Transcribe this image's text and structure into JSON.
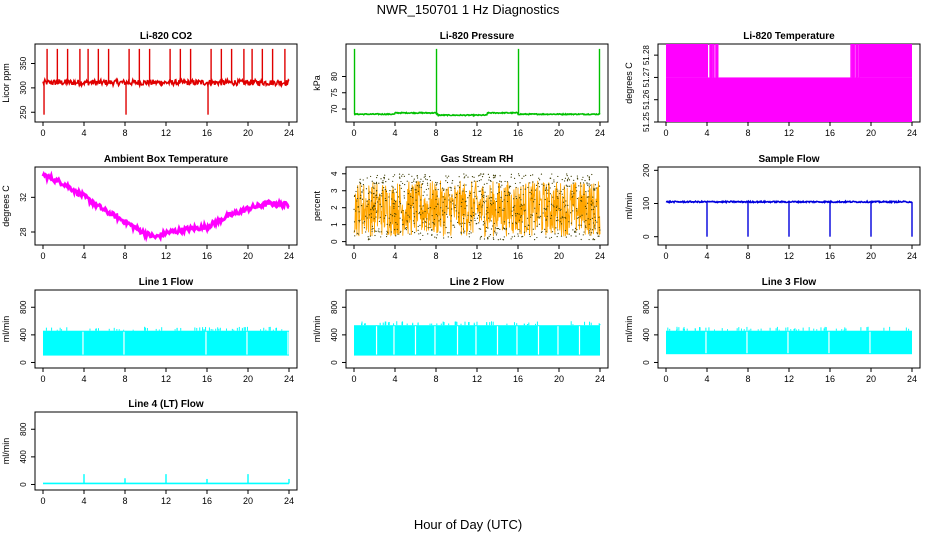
{
  "page": {
    "title": "NWR_150701  1 Hz Diagnostics",
    "xlabel": "Hour of Day (UTC)"
  },
  "colors": {
    "co2": "#e00000",
    "pressure": "#00c000",
    "temperature": "#ff00ff",
    "box_temperature": "#ff00ff",
    "rh": "#ffa500",
    "rh_points": "#3a3a00",
    "sample_flow": "#0000dd",
    "line_flow": "#00ffff",
    "axis": "#000000"
  },
  "chart_data": [
    {
      "type": "line",
      "title": "Li-820 CO2",
      "ylabel": "Licor ppm",
      "xlim": [
        0,
        24
      ],
      "ylim": [
        230,
        390
      ],
      "x_ticks": [
        "0",
        "4",
        "8",
        "12",
        "16",
        "20",
        "24"
      ],
      "y_ticks": [
        "250",
        "300",
        "350"
      ],
      "baseline": 311,
      "noise": 6,
      "spike_up_hours": [
        0.4,
        1.4,
        2.4,
        3.6,
        4.4,
        5.4,
        6.4,
        8.4,
        9.4,
        10.4,
        12.4,
        13.4,
        14.4,
        16.4,
        17.4,
        18.4,
        19.6,
        20.4,
        21.4,
        22.4,
        23.6
      ],
      "spike_up_value": 380,
      "spike_down_hours": [
        0.1,
        8.1,
        16.1
      ],
      "spike_down_value": 245,
      "color_key": "co2"
    },
    {
      "type": "line",
      "title": "Li-820 Pressure",
      "ylabel": "kPa",
      "xlim": [
        0,
        24
      ],
      "ylim": [
        66,
        90
      ],
      "x_ticks": [
        "0",
        "4",
        "8",
        "12",
        "16",
        "20",
        "24"
      ],
      "y_ticks": [
        "70",
        "75",
        "80"
      ],
      "baseline": 68.4,
      "noise": 0.15,
      "spike_up_hours": [
        0.05,
        8.05,
        16.05,
        23.95
      ],
      "spike_up_value": 88.5,
      "steps": [
        {
          "from": 4,
          "to": 8,
          "value": 68.8
        },
        {
          "from": 13,
          "to": 16,
          "value": 68.8
        },
        {
          "from": 8.2,
          "to": 13,
          "value": 68.1
        }
      ],
      "color_key": "pressure"
    },
    {
      "type": "line",
      "title": "Li-820 Temperature",
      "ylabel": "degrees C",
      "xlim": [
        0,
        24
      ],
      "ylim": [
        51.25,
        51.285
      ],
      "x_ticks": [
        "0",
        "4",
        "8",
        "12",
        "16",
        "20",
        "24"
      ],
      "y_ticks": [
        "51.25",
        "51.26",
        "51.27",
        "51.28"
      ],
      "y_tick_values": [
        51.25,
        51.26,
        51.27,
        51.28
      ],
      "quantized_levels": [
        51.25,
        51.27,
        51.285
      ],
      "upper_band_hours": [
        [
          0,
          4.1
        ],
        [
          18.8,
          24
        ]
      ],
      "color_key": "temperature"
    },
    {
      "type": "scatter",
      "title": "Ambient Box Temperature",
      "ylabel": "degrees C",
      "xlim": [
        0,
        24
      ],
      "ylim": [
        26.5,
        35.5
      ],
      "x_ticks": [
        "0",
        "4",
        "8",
        "12",
        "16",
        "20",
        "24"
      ],
      "y_ticks": [
        "28",
        "32"
      ],
      "y_tick_values": [
        28,
        32
      ],
      "x": [
        0,
        2,
        4,
        6,
        8,
        10,
        11,
        12,
        14,
        16,
        18,
        20,
        22,
        24
      ],
      "y": [
        34.6,
        33.6,
        32.1,
        30.5,
        29.2,
        27.8,
        27.4,
        27.9,
        28.3,
        28.6,
        29.8,
        30.7,
        31.3,
        31.1
      ],
      "color_key": "box_temperature"
    },
    {
      "type": "scatter",
      "title": "Gas Stream RH",
      "ylabel": "percent",
      "xlim": [
        0,
        24
      ],
      "ylim": [
        -0.2,
        4.4
      ],
      "x_ticks": [
        "0",
        "4",
        "8",
        "12",
        "16",
        "20",
        "24"
      ],
      "y_ticks": [
        "0",
        "1",
        "2",
        "3",
        "4"
      ],
      "band_low": 0.3,
      "band_high": 3.6,
      "outlier_min": -0.1,
      "outlier_max": 4.1,
      "color_key": "rh"
    },
    {
      "type": "line",
      "title": "Sample Flow",
      "ylabel": "ml/min",
      "xlim": [
        0,
        24
      ],
      "ylim": [
        -25,
        210
      ],
      "x_ticks": [
        "0",
        "4",
        "8",
        "12",
        "16",
        "20",
        "24"
      ],
      "y_ticks": [
        "0",
        "100",
        "200"
      ],
      "baseline": 105,
      "noise": 2,
      "spike_down_hours": [
        4,
        8,
        12,
        16,
        20,
        24
      ],
      "spike_down_value": 0,
      "color_key": "sample_flow"
    },
    {
      "type": "area",
      "title": "Line 1 Flow",
      "ylabel": "ml/min",
      "xlim": [
        0,
        24
      ],
      "ylim": [
        -80,
        1050
      ],
      "x_ticks": [
        "0",
        "4",
        "8",
        "12",
        "16",
        "20",
        "24"
      ],
      "y_ticks": [
        "0",
        "400",
        "800"
      ],
      "band_low": 100,
      "band_high": 460,
      "gaps": [
        3.9,
        7.9,
        15.9,
        19.9,
        23.9
      ],
      "color_key": "line_flow"
    },
    {
      "type": "area",
      "title": "Line 2 Flow",
      "ylabel": "ml/min",
      "xlim": [
        0,
        24
      ],
      "ylim": [
        -80,
        1050
      ],
      "x_ticks": [
        "0",
        "4",
        "8",
        "12",
        "16",
        "20",
        "24"
      ],
      "y_ticks": [
        "0",
        "400",
        "800"
      ],
      "band_low": 100,
      "band_high": 540,
      "gaps": [
        2.2,
        3.9,
        6.0,
        7.9,
        10.1,
        11.9,
        14.0,
        15.9,
        18.0,
        19.9,
        22.0
      ],
      "color_key": "line_flow"
    },
    {
      "type": "area",
      "title": "Line 3 Flow",
      "ylabel": "ml/min",
      "xlim": [
        0,
        24
      ],
      "ylim": [
        -80,
        1050
      ],
      "x_ticks": [
        "0",
        "4",
        "8",
        "12",
        "16",
        "20",
        "24"
      ],
      "y_ticks": [
        "0",
        "400",
        "800"
      ],
      "band_low": 120,
      "band_high": 460,
      "gaps": [
        3.9,
        7.9,
        11.9,
        15.9,
        19.9
      ],
      "color_key": "line_flow"
    },
    {
      "type": "line",
      "title": "Line 4 (LT) Flow",
      "ylabel": "ml/min",
      "xlim": [
        0,
        24
      ],
      "ylim": [
        -80,
        1050
      ],
      "x_ticks": [
        "0",
        "4",
        "8",
        "12",
        "16",
        "20",
        "24"
      ],
      "y_ticks": [
        "0",
        "400",
        "800"
      ],
      "baseline": 15,
      "spikes": [
        {
          "x": 4,
          "y": 150
        },
        {
          "x": 8,
          "y": 90
        },
        {
          "x": 12,
          "y": 150
        },
        {
          "x": 16,
          "y": 80
        },
        {
          "x": 20,
          "y": 150
        },
        {
          "x": 24,
          "y": 80
        }
      ],
      "color_key": "line_flow"
    }
  ]
}
